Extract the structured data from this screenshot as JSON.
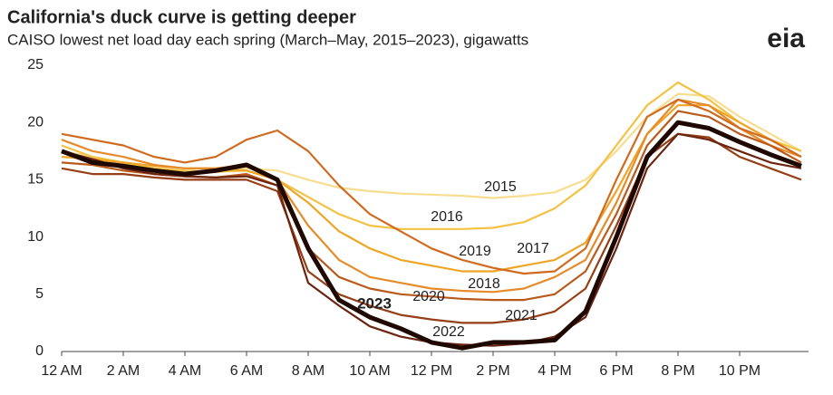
{
  "chart_data": {
    "type": "line",
    "title": "California's duck curve is getting deeper",
    "subtitle": "CAISO lowest net load day each spring (March–May, 2015–2023), gigawatts",
    "logo": "eia",
    "x": [
      0,
      1,
      2,
      3,
      4,
      5,
      6,
      7,
      8,
      9,
      10,
      11,
      12,
      13,
      14,
      15,
      16,
      17,
      18,
      19,
      20,
      21,
      22,
      23,
      24
    ],
    "xlim": [
      0,
      24
    ],
    "xticks": [
      {
        "value": 0,
        "label": "12 AM"
      },
      {
        "value": 2,
        "label": "2 AM"
      },
      {
        "value": 4,
        "label": "4 AM"
      },
      {
        "value": 6,
        "label": "6 AM"
      },
      {
        "value": 8,
        "label": "8 AM"
      },
      {
        "value": 10,
        "label": "10 AM"
      },
      {
        "value": 12,
        "label": "12 PM"
      },
      {
        "value": 14,
        "label": "2 PM"
      },
      {
        "value": 16,
        "label": "4 PM"
      },
      {
        "value": 18,
        "label": "6 PM"
      },
      {
        "value": 20,
        "label": "8 PM"
      },
      {
        "value": 22,
        "label": "10 PM"
      }
    ],
    "ylim": [
      0,
      25
    ],
    "yticks": [
      0,
      5,
      10,
      15,
      20,
      25
    ],
    "grid": false,
    "series": [
      {
        "name": "2015",
        "color": "#f7dd8f",
        "values": [
          17.5,
          17,
          16.5,
          16.2,
          16,
          16,
          16,
          15.8,
          15,
          14.3,
          14,
          13.8,
          13.7,
          13.6,
          13.4,
          13.6,
          13.9,
          15,
          17.5,
          20.5,
          22.5,
          22.3,
          20.5,
          19,
          17.5
        ]
      },
      {
        "name": "2016",
        "color": "#f3c244",
        "values": [
          18,
          17,
          16.5,
          16,
          15.8,
          15.7,
          15.8,
          15,
          13.5,
          12,
          11,
          10.7,
          10.7,
          10.7,
          10.8,
          11.3,
          12.5,
          14.5,
          18,
          21.5,
          23.5,
          22,
          20,
          18.5,
          17.5
        ]
      },
      {
        "name": "2017",
        "color": "#efa526",
        "values": [
          17,
          16.8,
          16.5,
          16.2,
          16,
          16,
          15.8,
          15,
          13,
          10.5,
          9,
          8,
          7.5,
          7,
          7,
          7.5,
          8,
          9.5,
          14,
          19,
          21.5,
          21.5,
          20,
          18.5,
          17
        ]
      },
      {
        "name": "2018",
        "color": "#e58b2a",
        "values": [
          18.5,
          17.5,
          17,
          16.3,
          16,
          16,
          16.3,
          15,
          11,
          8,
          6.5,
          6,
          5.5,
          5.3,
          5.2,
          5.5,
          6.5,
          8,
          13,
          19,
          22,
          21.5,
          19.5,
          18,
          17
        ]
      },
      {
        "name": "2019",
        "color": "#d06a1f",
        "values": [
          19,
          18.5,
          18,
          17,
          16.5,
          17,
          18.5,
          19.3,
          17.5,
          14.5,
          12,
          10.5,
          9,
          8,
          7.3,
          6.8,
          7,
          9,
          15,
          20.5,
          22,
          21,
          19.5,
          18.5,
          17
        ]
      },
      {
        "name": "2020",
        "color": "#b95a1c",
        "values": [
          16.5,
          16.3,
          15.8,
          15.5,
          15.3,
          15.2,
          15.5,
          14.5,
          9,
          6.5,
          5.5,
          5,
          4.8,
          4.6,
          4.5,
          4.5,
          5,
          7,
          12,
          18,
          21,
          20.5,
          19,
          18,
          16.5
        ]
      },
      {
        "name": "2021",
        "color": "#963f16",
        "values": [
          16,
          15.5,
          15.5,
          15.2,
          15,
          15,
          15,
          14,
          7,
          5,
          4,
          3.2,
          2.8,
          2.5,
          2.5,
          2.8,
          3.5,
          5.5,
          11,
          17,
          19,
          18.7,
          17,
          16,
          15
        ]
      },
      {
        "name": "2022",
        "color": "#6a2410",
        "values": [
          17.5,
          16.8,
          16,
          15.5,
          15.3,
          15.2,
          15.3,
          14.5,
          6,
          4,
          2.2,
          1.3,
          0.8,
          0.6,
          0.5,
          0.7,
          1.3,
          3,
          9,
          16,
          19,
          18.5,
          17.5,
          16.5,
          16
        ]
      },
      {
        "name": "2023",
        "color": "#1e0800",
        "values": [
          17.5,
          16.5,
          16.2,
          15.8,
          15.5,
          15.8,
          16.3,
          15,
          9,
          4.5,
          3,
          2,
          0.8,
          0.3,
          0.8,
          0.8,
          1,
          3.5,
          10,
          17,
          20,
          19.5,
          18.3,
          17.2,
          16.2
        ]
      }
    ]
  }
}
